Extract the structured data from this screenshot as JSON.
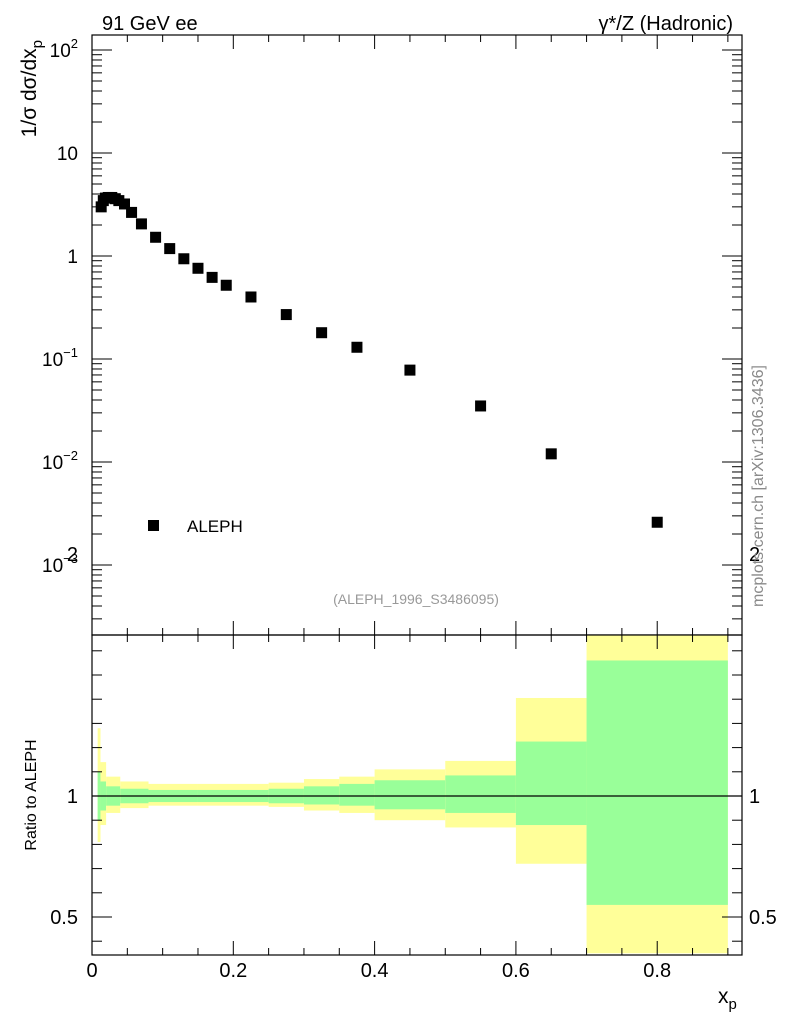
{
  "header": {
    "left_label": "91 GeV ee",
    "right_label": "γ*/Z (Hadronic)"
  },
  "watermark": "mcplots.cern.ch [arXiv:1306.3436]",
  "analysis_tag": "(ALEPH_1996_S3486095)",
  "legend": {
    "label": "ALEPH",
    "position": "bottom-left"
  },
  "colors": {
    "band_outer": "#ffff99",
    "band_inner": "#99ff99",
    "marker": "#000000",
    "reference_line": "#000000"
  },
  "chart_data": [
    {
      "type": "scatter",
      "panel": "main",
      "ylabel": "1/σ dσ/dx",
      "ylabel_sub": "p",
      "yscale": "log",
      "ylim": [
        0.0002,
        150
      ],
      "xlim": [
        0,
        0.92
      ],
      "y_tick_labels": [
        {
          "value": 100,
          "base": "10",
          "exp": "2"
        },
        {
          "value": 10,
          "base": "10",
          "exp": ""
        },
        {
          "value": 1,
          "base": "1",
          "exp": ""
        },
        {
          "value": 0.1,
          "base": "10",
          "exp": "−1"
        },
        {
          "value": 0.01,
          "base": "10",
          "exp": "−2"
        },
        {
          "value": 0.001,
          "base": "10",
          "exp": "−3"
        }
      ],
      "series": [
        {
          "name": "ALEPH",
          "x": [
            0.013,
            0.016,
            0.019,
            0.023,
            0.028,
            0.033,
            0.038,
            0.046,
            0.056,
            0.07,
            0.09,
            0.11,
            0.13,
            0.15,
            0.17,
            0.19,
            0.225,
            0.275,
            0.325,
            0.375,
            0.45,
            0.55,
            0.65,
            0.8
          ],
          "y": [
            3.0,
            3.45,
            3.65,
            3.7,
            3.7,
            3.6,
            3.45,
            3.2,
            2.65,
            2.05,
            1.52,
            1.18,
            0.94,
            0.76,
            0.62,
            0.52,
            0.4,
            0.27,
            0.18,
            0.13,
            0.078,
            0.035,
            0.012,
            0.0026
          ]
        }
      ]
    },
    {
      "type": "area",
      "panel": "ratio",
      "ylabel": "Ratio to ALEPH",
      "xlabel": "x",
      "xlabel_sub": "p",
      "xlim": [
        0,
        0.92
      ],
      "ylim": [
        0.35,
        2.3
      ],
      "x_ticks": [
        0,
        0.2,
        0.4,
        0.6,
        0.8
      ],
      "x_tick_labels": [
        "0",
        "0.2",
        "0.4",
        "0.6",
        "0.8"
      ],
      "y_ticks": [
        0.5,
        1,
        2
      ],
      "y_tick_labels": [
        "0.5",
        "1",
        "2"
      ],
      "reference": 1,
      "bands": [
        {
          "x0": 0.008,
          "x1": 0.012,
          "outer": [
            0.81,
            1.28
          ],
          "inner": [
            0.9,
            1.1
          ]
        },
        {
          "x0": 0.012,
          "x1": 0.02,
          "outer": [
            0.88,
            1.14
          ],
          "inner": [
            0.94,
            1.06
          ]
        },
        {
          "x0": 0.02,
          "x1": 0.04,
          "outer": [
            0.93,
            1.08
          ],
          "inner": [
            0.96,
            1.04
          ]
        },
        {
          "x0": 0.04,
          "x1": 0.08,
          "outer": [
            0.95,
            1.06
          ],
          "inner": [
            0.97,
            1.03
          ]
        },
        {
          "x0": 0.08,
          "x1": 0.15,
          "outer": [
            0.96,
            1.05
          ],
          "inner": [
            0.975,
            1.025
          ]
        },
        {
          "x0": 0.15,
          "x1": 0.25,
          "outer": [
            0.96,
            1.05
          ],
          "inner": [
            0.975,
            1.025
          ]
        },
        {
          "x0": 0.25,
          "x1": 0.3,
          "outer": [
            0.955,
            1.055
          ],
          "inner": [
            0.97,
            1.03
          ]
        },
        {
          "x0": 0.3,
          "x1": 0.35,
          "outer": [
            0.94,
            1.07
          ],
          "inner": [
            0.965,
            1.04
          ]
        },
        {
          "x0": 0.35,
          "x1": 0.4,
          "outer": [
            0.93,
            1.08
          ],
          "inner": [
            0.96,
            1.05
          ]
        },
        {
          "x0": 0.4,
          "x1": 0.5,
          "outer": [
            0.9,
            1.11
          ],
          "inner": [
            0.945,
            1.065
          ]
        },
        {
          "x0": 0.5,
          "x1": 0.6,
          "outer": [
            0.87,
            1.145
          ],
          "inner": [
            0.93,
            1.085
          ]
        },
        {
          "x0": 0.6,
          "x1": 0.7,
          "outer": [
            0.72,
            1.405
          ],
          "inner": [
            0.88,
            1.225
          ]
        },
        {
          "x0": 0.7,
          "x1": 0.9,
          "outer": [
            0.345,
            1.95
          ],
          "inner": [
            0.55,
            1.56
          ]
        }
      ]
    }
  ]
}
